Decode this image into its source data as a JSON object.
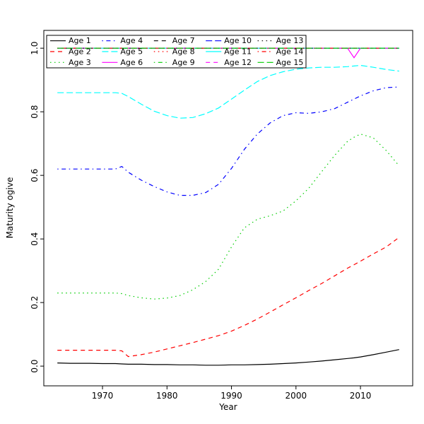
{
  "figure": {
    "background": "#ffffff"
  },
  "chart_data": {
    "type": "line",
    "xlabel": "Year",
    "ylabel": "Maturity ogive",
    "xlim": [
      1960.9,
      2018.1
    ],
    "ylim": [
      -0.062,
      1.056
    ],
    "x_ticks": [
      1970,
      1980,
      1990,
      2000,
      2010
    ],
    "y_ticks": [
      0.0,
      0.2,
      0.4,
      0.6,
      0.8,
      1.0
    ],
    "grid": false,
    "legend": {
      "position": "top-left",
      "columns": 5,
      "rows": 3,
      "border": true,
      "fill_order": "column-major"
    },
    "x": [
      1963,
      1965,
      1968,
      1970,
      1972,
      1973,
      1974,
      1976,
      1978,
      1980,
      1982,
      1984,
      1986,
      1988,
      1990,
      1992,
      1994,
      1996,
      1998,
      2000,
      2002,
      2004,
      2006,
      2008,
      2009,
      2010,
      2012,
      2014,
      2016
    ],
    "series": [
      {
        "name": "Age 1",
        "color": "#000000",
        "linetype": "solid",
        "values": [
          0.01,
          0.009,
          0.009,
          0.008,
          0.008,
          0.007,
          0.006,
          0.006,
          0.005,
          0.005,
          0.004,
          0.004,
          0.003,
          0.003,
          0.004,
          0.004,
          0.005,
          0.006,
          0.008,
          0.01,
          0.013,
          0.016,
          0.02,
          0.024,
          0.026,
          0.029,
          0.036,
          0.044,
          0.052
        ]
      },
      {
        "name": "Age 2",
        "color": "#ff0000",
        "linetype": "dashed",
        "values": [
          0.05,
          0.05,
          0.05,
          0.05,
          0.05,
          0.048,
          0.03,
          0.036,
          0.044,
          0.054,
          0.064,
          0.074,
          0.085,
          0.096,
          0.11,
          0.128,
          0.148,
          0.17,
          0.193,
          0.215,
          0.238,
          0.26,
          0.284,
          0.308,
          0.319,
          0.33,
          0.353,
          0.375,
          0.405
        ]
      },
      {
        "name": "Age 3",
        "color": "#00cd00",
        "linetype": "dotted",
        "values": [
          0.23,
          0.23,
          0.23,
          0.23,
          0.23,
          0.228,
          0.222,
          0.215,
          0.211,
          0.214,
          0.222,
          0.24,
          0.266,
          0.305,
          0.375,
          0.435,
          0.462,
          0.473,
          0.488,
          0.52,
          0.56,
          0.612,
          0.663,
          0.707,
          0.72,
          0.73,
          0.718,
          0.678,
          0.63
        ]
      },
      {
        "name": "Age 4",
        "color": "#0000ff",
        "linetype": "dashdot",
        "values": [
          0.62,
          0.62,
          0.62,
          0.62,
          0.62,
          0.628,
          0.61,
          0.585,
          0.565,
          0.548,
          0.537,
          0.537,
          0.546,
          0.572,
          0.622,
          0.682,
          0.73,
          0.765,
          0.788,
          0.797,
          0.795,
          0.8,
          0.81,
          0.83,
          0.84,
          0.85,
          0.866,
          0.876,
          0.878
        ]
      },
      {
        "name": "Age 5",
        "color": "#00ffff",
        "linetype": "longdash",
        "values": [
          0.86,
          0.86,
          0.86,
          0.86,
          0.86,
          0.858,
          0.848,
          0.824,
          0.802,
          0.788,
          0.78,
          0.782,
          0.794,
          0.812,
          0.84,
          0.868,
          0.895,
          0.914,
          0.926,
          0.934,
          0.938,
          0.94,
          0.94,
          0.942,
          0.944,
          0.946,
          0.94,
          0.933,
          0.928
        ]
      },
      {
        "name": "Age 6",
        "color": "#ff00ff",
        "linetype": "solid",
        "values": [
          1,
          1,
          1,
          1,
          1,
          1,
          1,
          1,
          1,
          1,
          1,
          1,
          1,
          1,
          1,
          1,
          1,
          1,
          1,
          1,
          1,
          1,
          1,
          1,
          0.97,
          1,
          1,
          1,
          1
        ]
      },
      {
        "name": "Age 7",
        "color": "#000000",
        "linetype": "dashed",
        "values": [
          1,
          1,
          1,
          1,
          1,
          1,
          1,
          1,
          1,
          1,
          1,
          1,
          1,
          1,
          1,
          1,
          1,
          1,
          1,
          1,
          1,
          1,
          1,
          1,
          1,
          1,
          1,
          1,
          1
        ]
      },
      {
        "name": "Age 8",
        "color": "#ff0000",
        "linetype": "dotted",
        "values": [
          1,
          1,
          1,
          1,
          1,
          1,
          1,
          1,
          1,
          1,
          1,
          1,
          1,
          1,
          1,
          1,
          1,
          1,
          1,
          1,
          1,
          1,
          1,
          1,
          1,
          1,
          1,
          1,
          1
        ]
      },
      {
        "name": "Age 9",
        "color": "#00cd00",
        "linetype": "dashdot",
        "values": [
          1,
          1,
          1,
          1,
          1,
          1,
          1,
          1,
          1,
          1,
          1,
          1,
          1,
          1,
          1,
          1,
          1,
          1,
          1,
          1,
          1,
          1,
          1,
          1,
          1,
          1,
          1,
          1,
          1
        ]
      },
      {
        "name": "Age 10",
        "color": "#0000ff",
        "linetype": "longdash",
        "values": [
          1,
          1,
          1,
          1,
          1,
          1,
          1,
          1,
          1,
          1,
          1,
          1,
          1,
          1,
          1,
          1,
          1,
          1,
          1,
          1,
          1,
          1,
          1,
          1,
          1,
          1,
          1,
          1,
          1
        ]
      },
      {
        "name": "Age 11",
        "color": "#00ffff",
        "linetype": "solid",
        "values": [
          1,
          1,
          1,
          1,
          1,
          1,
          1,
          1,
          1,
          1,
          1,
          1,
          1,
          1,
          1,
          1,
          1,
          1,
          1,
          1,
          1,
          1,
          1,
          1,
          1,
          1,
          1,
          1,
          1
        ]
      },
      {
        "name": "Age 12",
        "color": "#ff00ff",
        "linetype": "dashed",
        "values": [
          1,
          1,
          1,
          1,
          1,
          1,
          1,
          1,
          1,
          1,
          1,
          1,
          1,
          1,
          1,
          1,
          1,
          1,
          1,
          1,
          1,
          1,
          1,
          1,
          1,
          1,
          1,
          1,
          1
        ]
      },
      {
        "name": "Age 13",
        "color": "#000000",
        "linetype": "dotted",
        "values": [
          1,
          1,
          1,
          1,
          1,
          1,
          1,
          1,
          1,
          1,
          1,
          1,
          1,
          1,
          1,
          1,
          1,
          1,
          1,
          1,
          1,
          1,
          1,
          1,
          1,
          1,
          1,
          1,
          1
        ]
      },
      {
        "name": "Age 14",
        "color": "#ff0000",
        "linetype": "dashdot",
        "values": [
          1,
          1,
          1,
          1,
          1,
          1,
          1,
          1,
          1,
          1,
          1,
          1,
          1,
          1,
          1,
          1,
          1,
          1,
          1,
          1,
          1,
          1,
          1,
          1,
          1,
          1,
          1,
          1,
          1
        ]
      },
      {
        "name": "Age 15",
        "color": "#00cd00",
        "linetype": "longdash",
        "values": [
          1,
          1,
          1,
          1,
          1,
          1,
          1,
          1,
          1,
          1,
          1,
          1,
          1,
          1,
          1,
          1,
          1,
          1,
          1,
          1,
          1,
          1,
          1,
          1,
          1,
          1,
          1,
          1,
          1
        ]
      }
    ]
  }
}
